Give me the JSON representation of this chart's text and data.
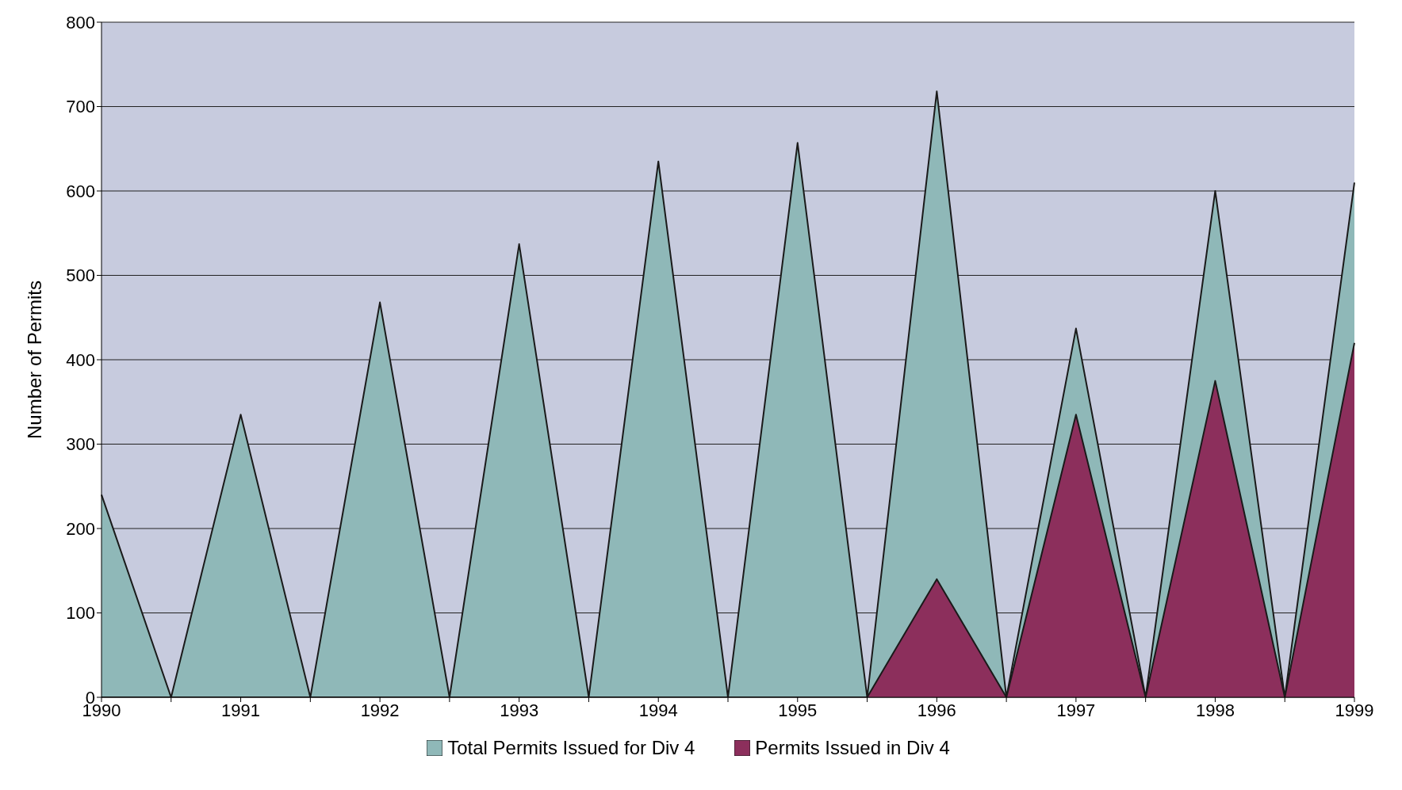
{
  "chart_data": {
    "type": "area",
    "ylabel": "Number of Permits",
    "categories": [
      "1990",
      null,
      "1991",
      null,
      "1992",
      null,
      "1993",
      null,
      "1994",
      null,
      "1995",
      null,
      "1996",
      null,
      "1997",
      null,
      "1998",
      null,
      "1999"
    ],
    "series": [
      {
        "name": "Total Permits Issued for Div 4",
        "color": "#8fb8b8",
        "values": [
          240,
          0,
          335,
          0,
          468,
          0,
          537,
          0,
          635,
          0,
          657,
          0,
          718,
          0,
          437,
          0,
          600,
          0,
          610
        ]
      },
      {
        "name": "Permits Issued in Div 4",
        "color": "#8c2f5c",
        "values": [
          0,
          0,
          0,
          0,
          0,
          0,
          0,
          0,
          0,
          0,
          0,
          0,
          140,
          0,
          335,
          0,
          375,
          0,
          420
        ]
      }
    ],
    "ylim": [
      0,
      800
    ],
    "yticks": [
      0,
      100,
      200,
      300,
      400,
      500,
      600,
      700,
      800
    ],
    "grid": "y",
    "legend": "bottom"
  }
}
